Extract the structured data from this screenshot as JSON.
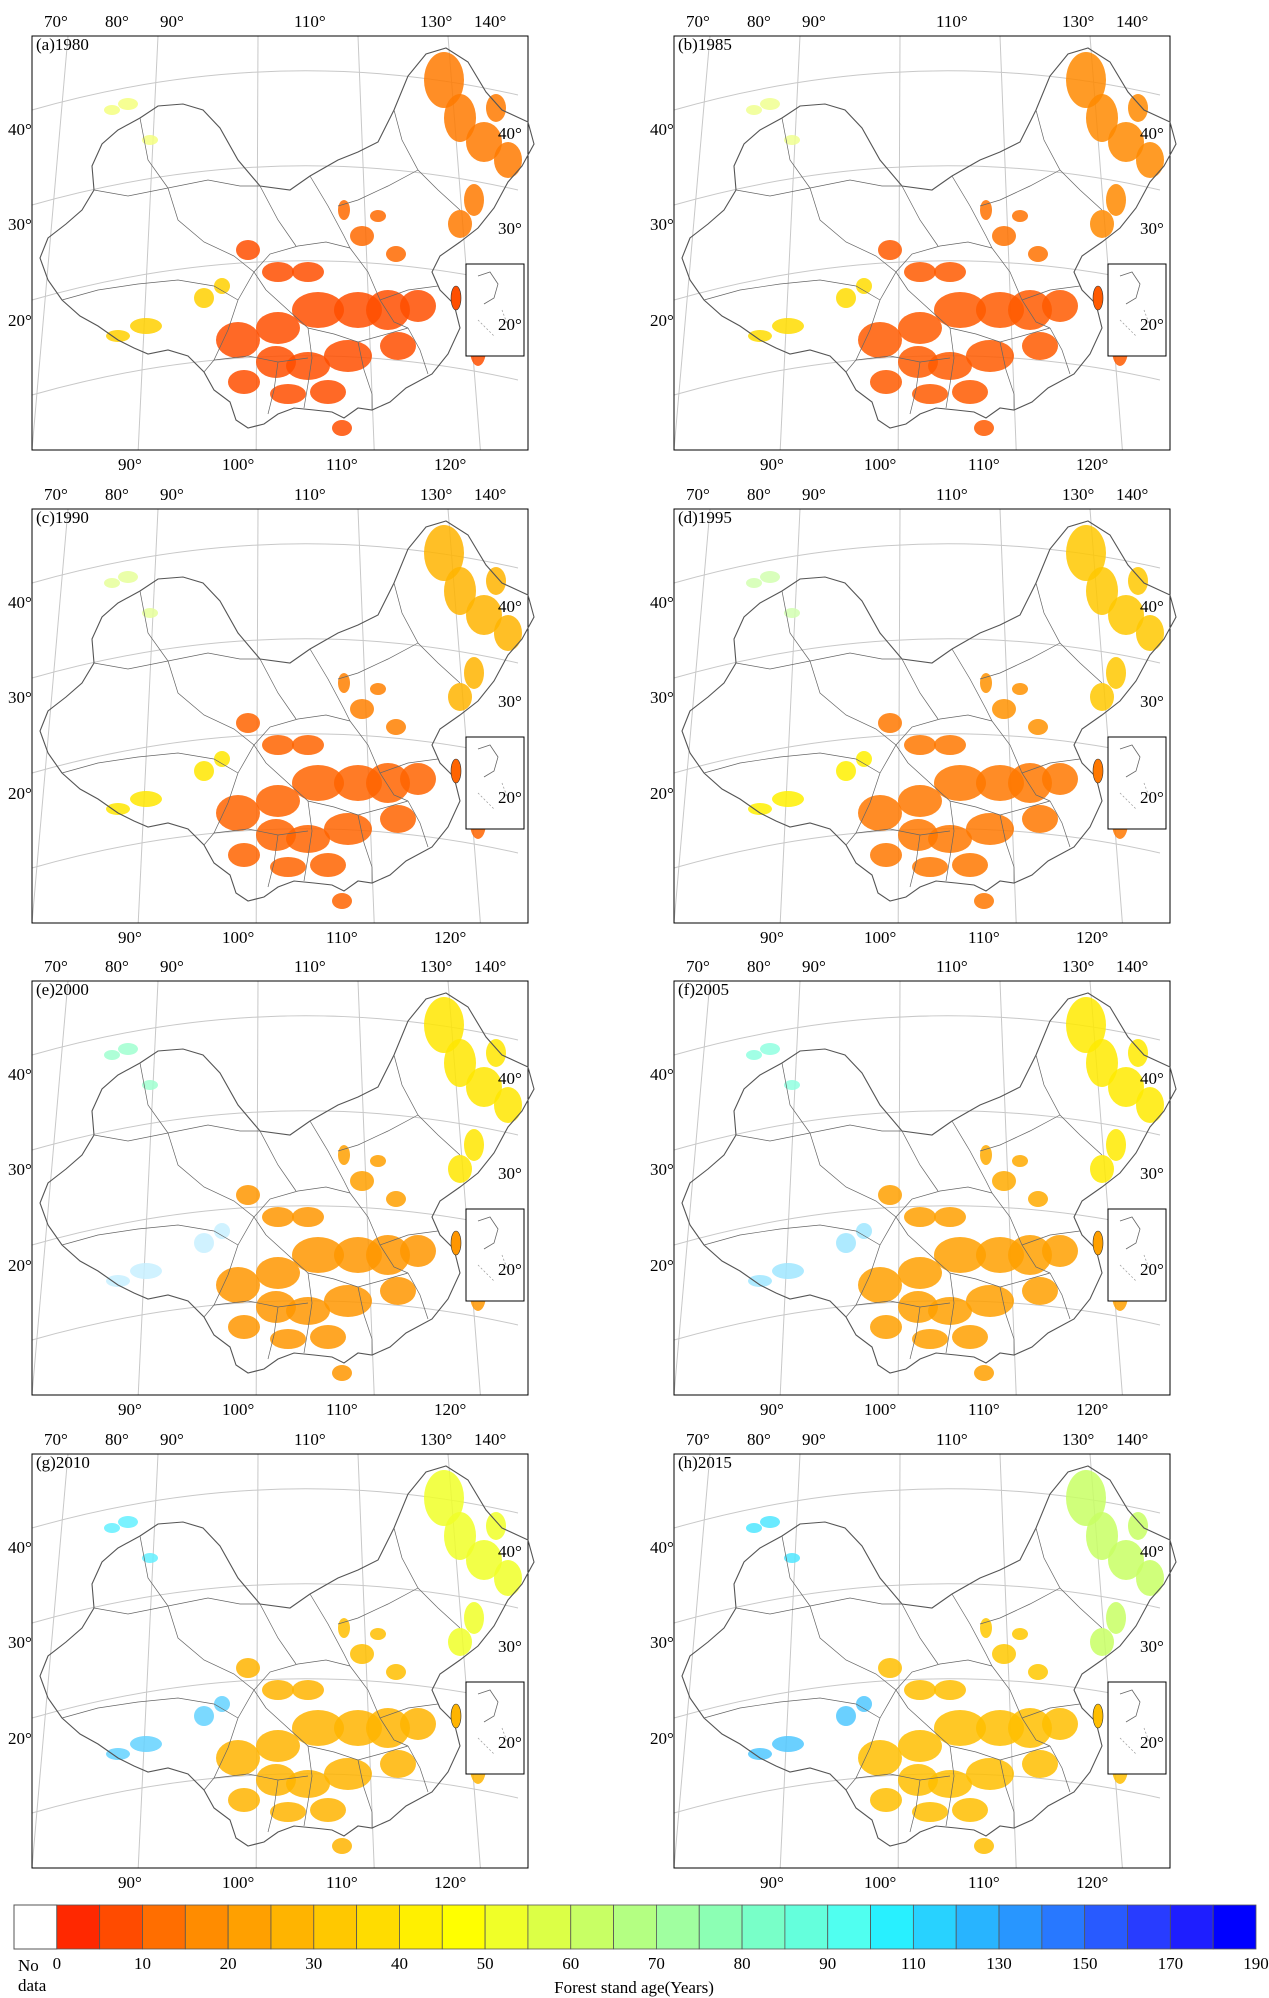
{
  "panels": [
    {
      "title": "(a)1980",
      "stage": 0
    },
    {
      "title": "(b)1985",
      "stage": 1
    },
    {
      "title": "(c)1990",
      "stage": 2
    },
    {
      "title": "(d)1995",
      "stage": 3
    },
    {
      "title": "(e)2000",
      "stage": 4
    },
    {
      "title": "(f)2005",
      "stage": 5
    },
    {
      "title": "(g)2010",
      "stage": 6
    },
    {
      "title": "(h)2015",
      "stage": 7
    }
  ],
  "map_labels": {
    "top_lon": [
      "70°",
      "80°",
      "90°",
      "110°",
      "130°",
      "140°"
    ],
    "bottom_lon": [
      "90°",
      "100°",
      "110°",
      "120°"
    ],
    "left_lat": [
      "40°",
      "30°",
      "20°"
    ],
    "right_lat": [
      "40°",
      "30°",
      "20°"
    ]
  },
  "legend": {
    "no_data_label_1": "No",
    "no_data_label_2": "data",
    "title": "Forest stand age(Years)",
    "ticks": [
      "0",
      "10",
      "20",
      "30",
      "40",
      "50",
      "60",
      "70",
      "80",
      "90",
      "110",
      "130",
      "150",
      "170",
      "190"
    ],
    "colors": [
      "#ff2800",
      "#ff4b00",
      "#ff6e00",
      "#ff8c00",
      "#ffa000",
      "#ffb400",
      "#ffc800",
      "#ffdc00",
      "#fff000",
      "#ffff00",
      "#f0ff28",
      "#dcff46",
      "#c8ff64",
      "#b4ff82",
      "#a0ffa0",
      "#8cffb4",
      "#78ffc8",
      "#64ffdc",
      "#50fff0",
      "#28f0ff",
      "#28d2ff",
      "#28b4ff",
      "#2896ff",
      "#2878ff",
      "#285aff",
      "#283cff",
      "#1e1eff",
      "#0000ff"
    ]
  }
}
